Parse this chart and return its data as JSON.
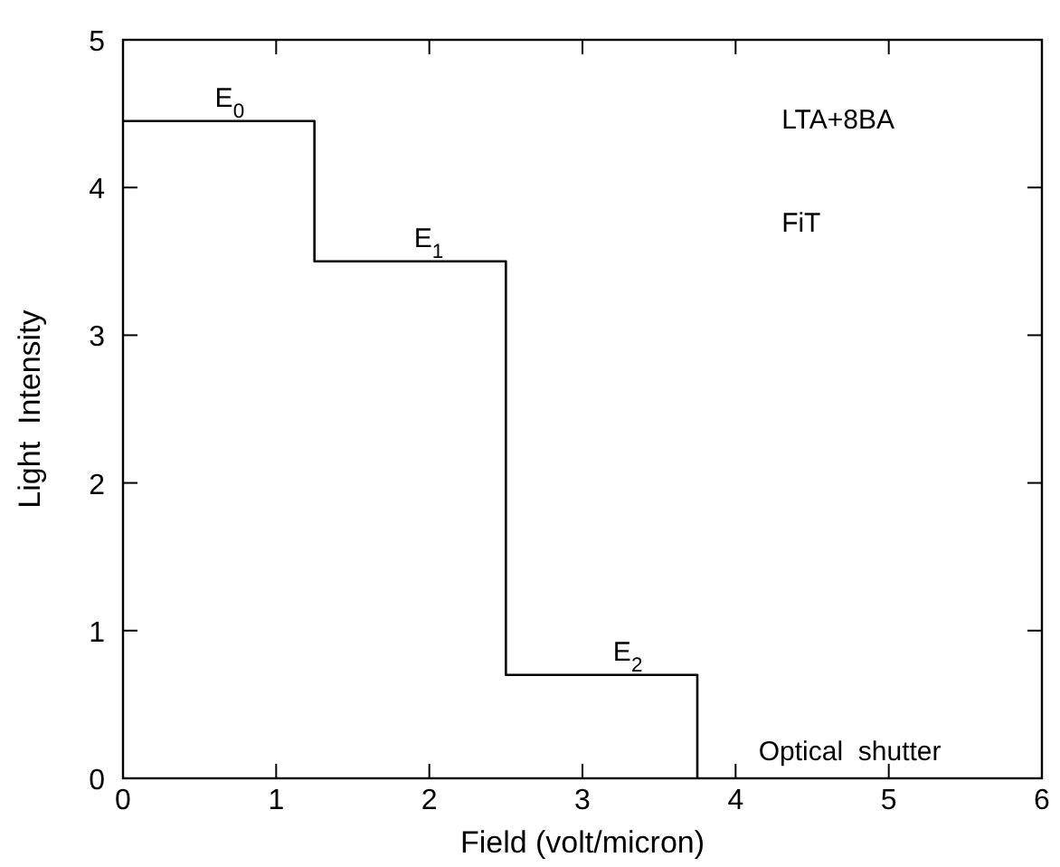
{
  "chart_data": {
    "type": "step",
    "xlabel": "Field (volt/micron)",
    "ylabel": "Light  Intensity",
    "x": [
      0,
      1.25,
      2.5,
      3.75
    ],
    "values": [
      4.45,
      3.5,
      0.7,
      0
    ],
    "color": "#000000",
    "xlim": [
      0,
      6
    ],
    "xticks": [
      0,
      1,
      2,
      3,
      4,
      5,
      6
    ],
    "ylim": [
      0,
      5
    ],
    "yticks": [
      0,
      1,
      2,
      3,
      4,
      5
    ],
    "grid": false,
    "annotations": [
      {
        "text": "E$_{0}$",
        "x": 0.6,
        "y": 4.45
      },
      {
        "text": "E$_{1}$",
        "x": 1.9,
        "y": 3.5
      },
      {
        "text": "E$_{2}$",
        "x": 3.2,
        "y": 0.7
      },
      "LTA+8BA",
      "FiT",
      "Optical  shutter"
    ]
  }
}
